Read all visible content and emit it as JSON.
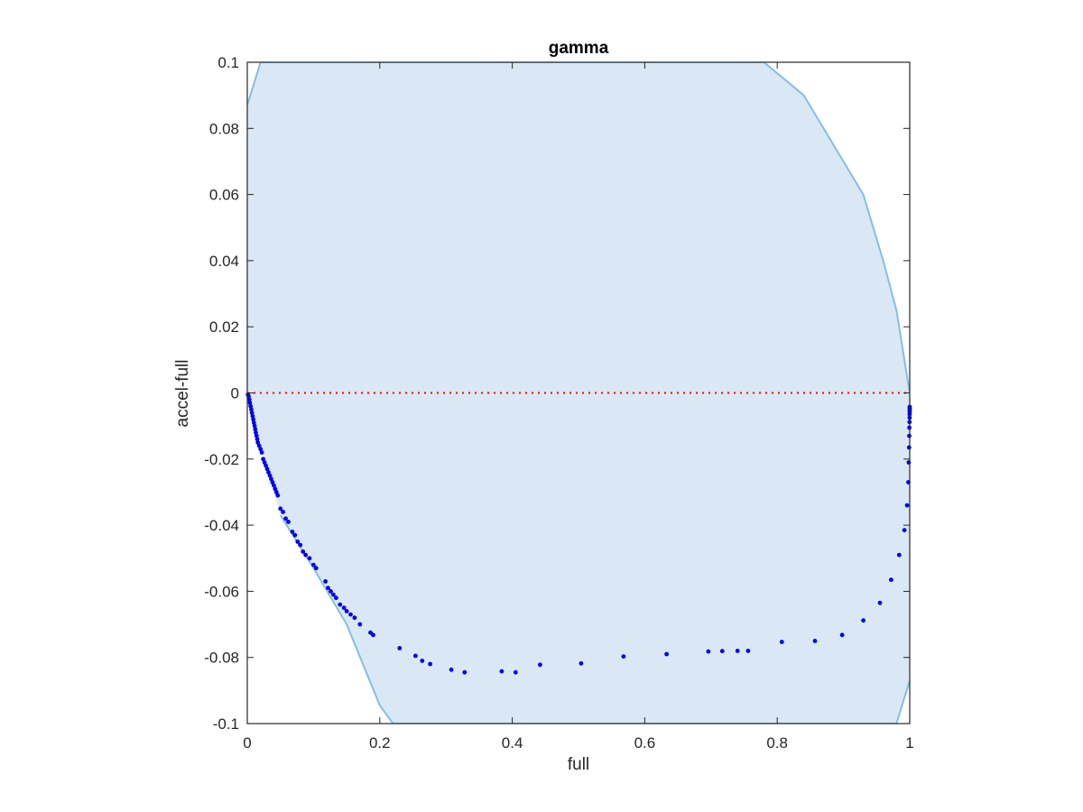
{
  "chart_data": {
    "type": "scatter",
    "title": "gamma",
    "xlabel": "full",
    "ylabel": "accel-full",
    "xlim": [
      0,
      1
    ],
    "ylim": [
      -0.1,
      0.1
    ],
    "xticks": [
      0,
      0.2,
      0.4,
      0.6,
      0.8,
      1
    ],
    "xtick_labels": [
      "0",
      "0.2",
      "0.4",
      "0.6",
      "0.8",
      "1"
    ],
    "yticks": [
      -0.1,
      -0.08,
      -0.06,
      -0.04,
      -0.02,
      0,
      0.02,
      0.04,
      0.06,
      0.08,
      0.1
    ],
    "ytick_labels": [
      "-0.1",
      "-0.08",
      "-0.06",
      "-0.04",
      "-0.02",
      "0",
      "0.02",
      "0.04",
      "0.06",
      "0.08",
      "0.1"
    ],
    "grid": false,
    "colors": {
      "band_fill": "#d9e8f4",
      "band_edge": "#87bde0",
      "points": "#0000ee",
      "reference_line": "#ff0000",
      "axes": "#262626"
    },
    "reference_line": {
      "y": 0,
      "style": "dotted"
    },
    "band": {
      "upper": [
        [
          0,
          0.087
        ],
        [
          0.02,
          0.1
        ],
        [
          0.78,
          0.1
        ],
        [
          0.84,
          0.09
        ],
        [
          0.9,
          0.07
        ],
        [
          0.93,
          0.06
        ],
        [
          0.96,
          0.04
        ],
        [
          0.98,
          0.025
        ],
        [
          1,
          0
        ]
      ],
      "lower": [
        [
          0,
          0
        ],
        [
          0.05,
          -0.037
        ],
        [
          0.1,
          -0.053
        ],
        [
          0.15,
          -0.07
        ],
        [
          0.2,
          -0.0945
        ],
        [
          0.22,
          -0.1
        ],
        [
          0.98,
          -0.1
        ],
        [
          1,
          -0.087
        ]
      ]
    },
    "points": [
      [
        0.001,
        -0.0005
      ],
      [
        0.002,
        -0.001
      ],
      [
        0.003,
        -0.002
      ],
      [
        0.004,
        -0.003
      ],
      [
        0.005,
        -0.004
      ],
      [
        0.006,
        -0.005
      ],
      [
        0.007,
        -0.006
      ],
      [
        0.008,
        -0.007
      ],
      [
        0.009,
        -0.008
      ],
      [
        0.01,
        -0.009
      ],
      [
        0.011,
        -0.01
      ],
      [
        0.012,
        -0.011
      ],
      [
        0.013,
        -0.012
      ],
      [
        0.014,
        -0.013
      ],
      [
        0.015,
        -0.014
      ],
      [
        0.016,
        -0.015
      ],
      [
        0.018,
        -0.016
      ],
      [
        0.02,
        -0.017
      ],
      [
        0.022,
        -0.018
      ],
      [
        0.024,
        -0.02
      ],
      [
        0.026,
        -0.021
      ],
      [
        0.028,
        -0.022
      ],
      [
        0.03,
        -0.023
      ],
      [
        0.032,
        -0.024
      ],
      [
        0.034,
        -0.025
      ],
      [
        0.036,
        -0.026
      ],
      [
        0.038,
        -0.027
      ],
      [
        0.04,
        -0.028
      ],
      [
        0.042,
        -0.029
      ],
      [
        0.044,
        -0.03
      ],
      [
        0.046,
        -0.031
      ],
      [
        0.05,
        -0.035
      ],
      [
        0.054,
        -0.036
      ],
      [
        0.058,
        -0.038
      ],
      [
        0.062,
        -0.039
      ],
      [
        0.068,
        -0.042
      ],
      [
        0.072,
        -0.043
      ],
      [
        0.076,
        -0.045
      ],
      [
        0.08,
        -0.046
      ],
      [
        0.084,
        -0.048
      ],
      [
        0.088,
        -0.049
      ],
      [
        0.094,
        -0.05
      ],
      [
        0.1,
        -0.052
      ],
      [
        0.104,
        -0.053
      ],
      [
        0.118,
        -0.057
      ],
      [
        0.122,
        -0.059
      ],
      [
        0.126,
        -0.06
      ],
      [
        0.13,
        -0.061
      ],
      [
        0.134,
        -0.062
      ],
      [
        0.14,
        -0.064
      ],
      [
        0.146,
        -0.065
      ],
      [
        0.15,
        -0.066
      ],
      [
        0.156,
        -0.067
      ],
      [
        0.162,
        -0.068
      ],
      [
        0.17,
        -0.07
      ],
      [
        0.186,
        -0.0725
      ],
      [
        0.19,
        -0.0732
      ],
      [
        0.23,
        -0.0772
      ],
      [
        0.254,
        -0.0795
      ],
      [
        0.264,
        -0.081
      ],
      [
        0.276,
        -0.082
      ],
      [
        0.308,
        -0.0837
      ],
      [
        0.328,
        -0.0845
      ],
      [
        0.384,
        -0.0842
      ],
      [
        0.405,
        -0.0845
      ],
      [
        0.442,
        -0.0822
      ],
      [
        0.504,
        -0.0818
      ],
      [
        0.568,
        -0.0797
      ],
      [
        0.633,
        -0.079
      ],
      [
        0.696,
        -0.0782
      ],
      [
        0.717,
        -0.0781
      ],
      [
        0.74,
        -0.078
      ],
      [
        0.756,
        -0.078
      ],
      [
        0.807,
        -0.0753
      ],
      [
        0.857,
        -0.075
      ],
      [
        0.898,
        -0.0732
      ],
      [
        0.93,
        -0.0688
      ],
      [
        0.955,
        -0.0635
      ],
      [
        0.972,
        -0.0565
      ],
      [
        0.984,
        -0.049
      ],
      [
        0.992,
        -0.0415
      ],
      [
        0.996,
        -0.034
      ],
      [
        0.998,
        -0.027
      ],
      [
        0.9985,
        -0.021
      ],
      [
        0.999,
        -0.0165
      ],
      [
        0.9993,
        -0.013
      ],
      [
        0.9995,
        -0.0105
      ],
      [
        0.9997,
        -0.0088
      ],
      [
        0.9998,
        -0.0075
      ],
      [
        0.9999,
        -0.0065
      ],
      [
        1.0,
        -0.0058
      ],
      [
        1.0,
        -0.0052
      ],
      [
        1.0,
        -0.0047
      ],
      [
        1.0,
        -0.0042
      ]
    ]
  }
}
